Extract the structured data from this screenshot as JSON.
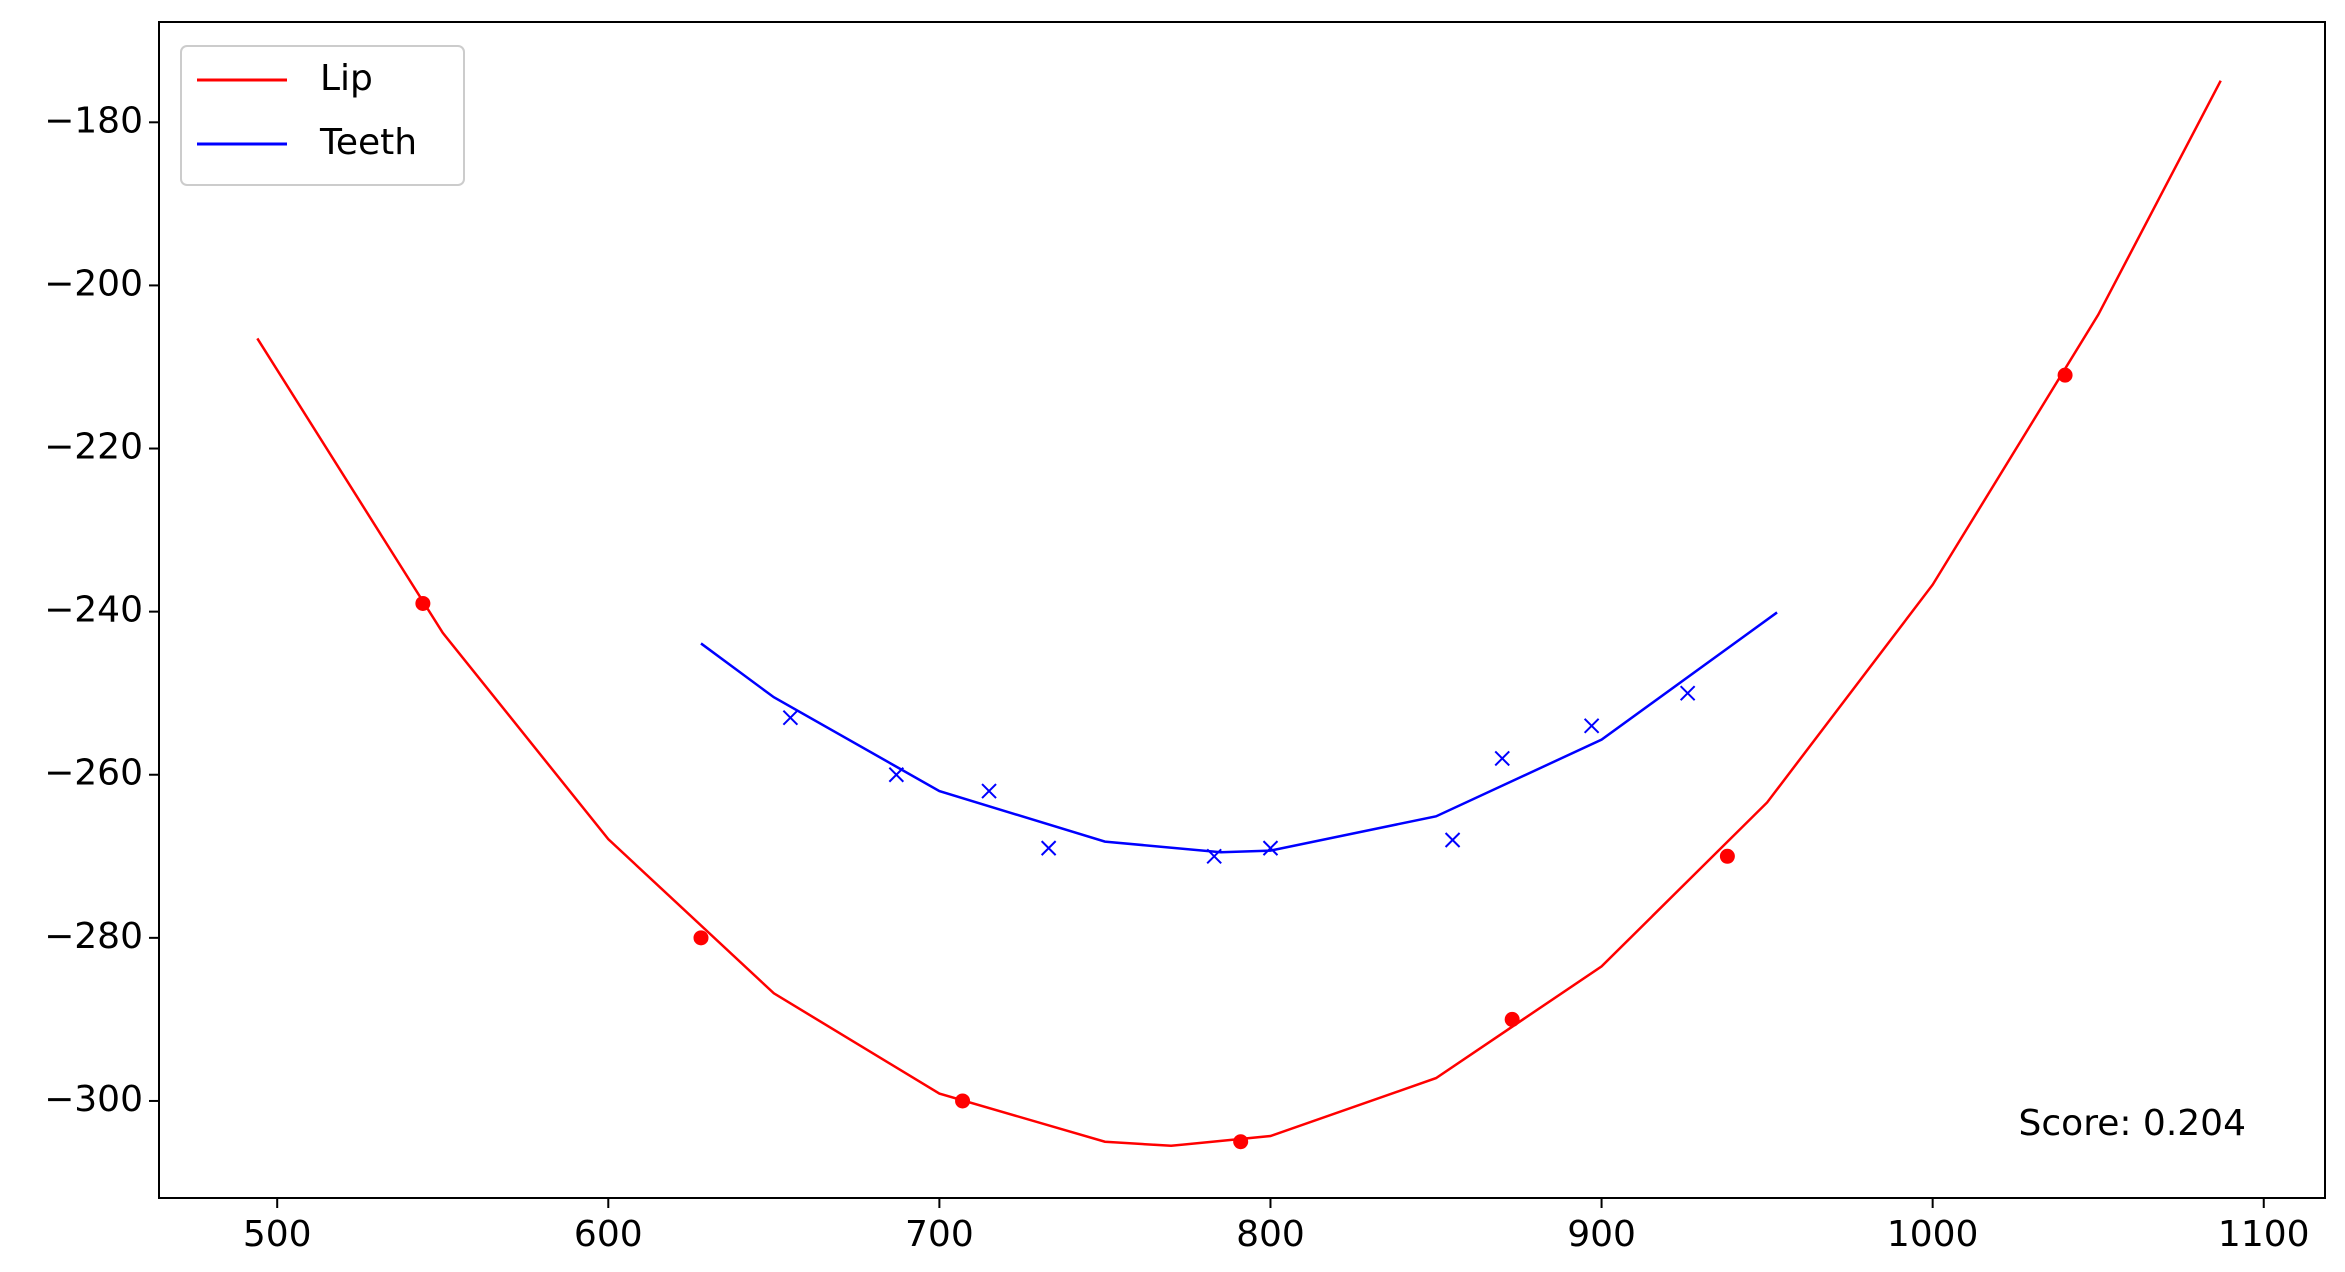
{
  "chart_data": {
    "type": "line",
    "series": [
      {
        "name": "Lip",
        "color": "#ff0000",
        "marker": "circle",
        "x": [
          494,
          550,
          600,
          650,
          700,
          750,
          770,
          800,
          850,
          900,
          950,
          1000,
          1050,
          1087
        ],
        "values": [
          -206.5,
          -242.6,
          -267.9,
          -286.8,
          -299.1,
          -305.0,
          -305.5,
          -304.3,
          -297.2,
          -283.5,
          -263.4,
          -236.7,
          -203.6,
          -174.9
        ],
        "points_x": [
          544,
          628,
          707,
          791,
          873,
          938,
          1040
        ],
        "points_y": [
          -239,
          -280,
          -300,
          -305,
          -290,
          -270,
          -211
        ]
      },
      {
        "name": "Teeth",
        "color": "#0000ff",
        "marker": "x",
        "x": [
          628,
          650,
          700,
          750,
          785,
          800,
          850,
          900,
          953
        ],
        "values": [
          -243.9,
          -250.5,
          -262.0,
          -268.2,
          -269.5,
          -269.3,
          -265.1,
          -255.7,
          -240.1
        ],
        "points_x": [
          655,
          687,
          715,
          733,
          783,
          800,
          855,
          870,
          897,
          926
        ],
        "points_y": [
          -253,
          -260,
          -262,
          -269,
          -270,
          -269,
          -268,
          -258,
          -254,
          -250
        ]
      }
    ],
    "xlim": [
      464.3,
      1118.5
    ],
    "ylim": [
      -311.9,
      -167.7
    ],
    "xticks": [
      500,
      600,
      700,
      800,
      900,
      1000,
      1100
    ],
    "yticks": [
      {
        "value": -300,
        "label": "−300"
      },
      {
        "value": -280,
        "label": "−280"
      },
      {
        "value": -260,
        "label": "−260"
      },
      {
        "value": -240,
        "label": "−240"
      },
      {
        "value": -220,
        "label": "−220"
      },
      {
        "value": -200,
        "label": "−200"
      },
      {
        "value": -180,
        "label": "−180"
      }
    ],
    "annotation": "Score: 0.204",
    "legend": "upper left",
    "grid": false
  }
}
